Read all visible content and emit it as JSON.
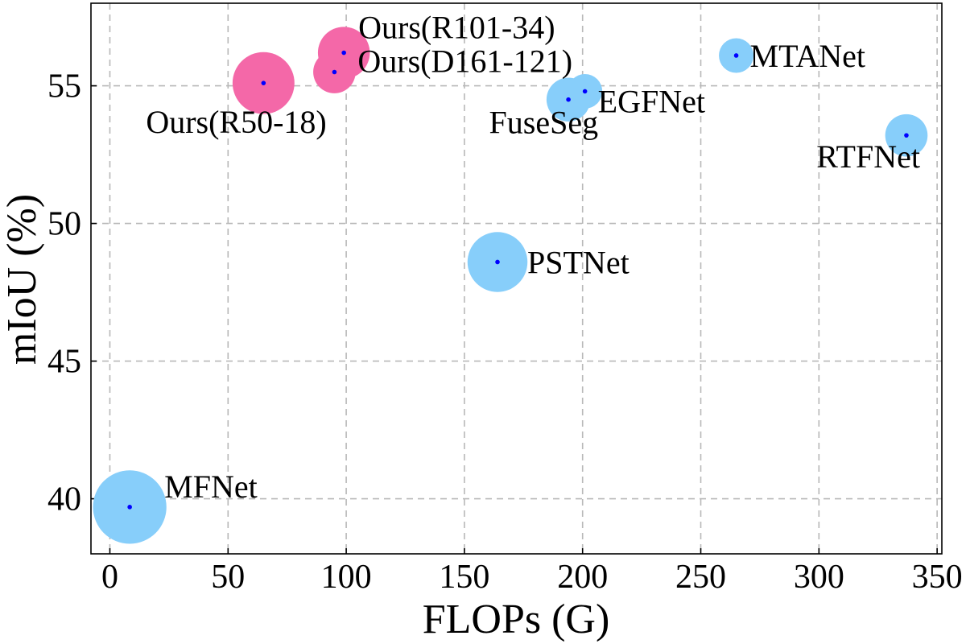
{
  "chart_data": {
    "type": "scatter",
    "xlabel": "FLOPs (G)",
    "ylabel": "mIoU (%)",
    "xlim": [
      -8,
      352
    ],
    "ylim": [
      38,
      58
    ],
    "xticks": [
      0,
      50,
      100,
      150,
      200,
      250,
      300,
      350
    ],
    "yticks": [
      40,
      45,
      50,
      55
    ],
    "grid": true,
    "points": [
      {
        "label": "MFNet",
        "x": 8.4,
        "y": 39.7,
        "color": "#87CEFA",
        "size": 9
      },
      {
        "label": "PSTNet",
        "x": 164,
        "y": 48.6,
        "color": "#87CEFA",
        "size": 6
      },
      {
        "label": "RTFNet",
        "x": 337,
        "y": 53.2,
        "color": "#87CEFA",
        "size": 3
      },
      {
        "label": "FuseSeg",
        "x": 194,
        "y": 54.5,
        "color": "#87CEFA",
        "size": 3.2
      },
      {
        "label": "EGFNet",
        "x": 201,
        "y": 54.8,
        "color": "#87CEFA",
        "size": 2
      },
      {
        "label": "MTANet",
        "x": 265,
        "y": 56.1,
        "color": "#87CEFA",
        "size": 2
      },
      {
        "label": "Ours(R50-18)",
        "x": 65,
        "y": 55.1,
        "color": "#F468A8",
        "size": 6.4
      },
      {
        "label": "Ours(D161-121)",
        "x": 95,
        "y": 55.5,
        "color": "#F468A8",
        "size": 3
      },
      {
        "label": "Ours(R101-34)",
        "x": 99,
        "y": 56.2,
        "color": "#F468A8",
        "size": 4.5
      }
    ],
    "center_marker_color": "#0000FF"
  }
}
